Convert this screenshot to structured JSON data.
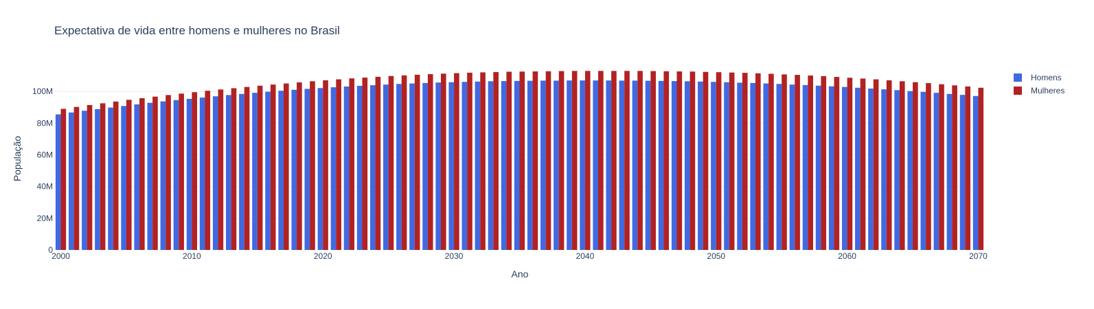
{
  "chart_data": {
    "type": "bar",
    "title": "Expectativa de vida entre homens e mulheres no Brasil",
    "xlabel": "Ano",
    "ylabel": "População",
    "xlim": [
      2000,
      2070
    ],
    "ylim": [
      0,
      110000000
    ],
    "x_ticks": [
      "2000",
      "2010",
      "2020",
      "2030",
      "2040",
      "2050",
      "2060",
      "2070"
    ],
    "x_tick_values": [
      2000,
      2010,
      2020,
      2030,
      2040,
      2050,
      2060,
      2070
    ],
    "y_ticks": [
      "0",
      "20M",
      "40M",
      "60M",
      "80M",
      "100M"
    ],
    "y_tick_values": [
      0,
      20000000,
      40000000,
      60000000,
      80000000,
      100000000
    ],
    "grid": true,
    "legend_position": "top-right",
    "x": [
      2000,
      2001,
      2002,
      2003,
      2004,
      2005,
      2006,
      2007,
      2008,
      2009,
      2010,
      2011,
      2012,
      2013,
      2014,
      2015,
      2016,
      2017,
      2018,
      2019,
      2020,
      2021,
      2022,
      2023,
      2024,
      2025,
      2026,
      2027,
      2028,
      2029,
      2030,
      2031,
      2032,
      2033,
      2034,
      2035,
      2036,
      2037,
      2038,
      2039,
      2040,
      2041,
      2042,
      2043,
      2044,
      2045,
      2046,
      2047,
      2048,
      2049,
      2050,
      2051,
      2052,
      2053,
      2054,
      2055,
      2056,
      2057,
      2058,
      2059,
      2060,
      2061,
      2062,
      2063,
      2064,
      2065,
      2066,
      2067,
      2068,
      2069,
      2070
    ],
    "series": [
      {
        "name": "Homens",
        "color": "#4169e1",
        "values": [
          85500000,
          86700000,
          87800000,
          88800000,
          89800000,
          90800000,
          91800000,
          92800000,
          93700000,
          94500000,
          95300000,
          96100000,
          96900000,
          97700000,
          98400000,
          99100000,
          99800000,
          100400000,
          101000000,
          101600000,
          102100000,
          102600000,
          103100000,
          103500000,
          103900000,
          104300000,
          104700000,
          105000000,
          105300000,
          105600000,
          105800000,
          106000000,
          106200000,
          106400000,
          106500000,
          106600000,
          106700000,
          106800000,
          106800000,
          106900000,
          106900000,
          106900000,
          106900000,
          106800000,
          106800000,
          106700000,
          106600000,
          106500000,
          106400000,
          106200000,
          106000000,
          105800000,
          105500000,
          105300000,
          105000000,
          104700000,
          104300000,
          104000000,
          103600000,
          103200000,
          102800000,
          102300000,
          101800000,
          101300000,
          100800000,
          100200000,
          99700000,
          99100000,
          98400000,
          97800000,
          97100000
        ]
      },
      {
        "name": "Mulheres",
        "color": "#b22222",
        "values": [
          89000000,
          90200000,
          91400000,
          92500000,
          93600000,
          94700000,
          95700000,
          96700000,
          97700000,
          98600000,
          99500000,
          100400000,
          101200000,
          102000000,
          102800000,
          103600000,
          104300000,
          105000000,
          105700000,
          106400000,
          107000000,
          107600000,
          108200000,
          108700000,
          109200000,
          109700000,
          110100000,
          110500000,
          110900000,
          111200000,
          111500000,
          111800000,
          112000000,
          112200000,
          112400000,
          112500000,
          112600000,
          112700000,
          112800000,
          112900000,
          112900000,
          112900000,
          112900000,
          112900000,
          112900000,
          112800000,
          112700000,
          112600000,
          112500000,
          112300000,
          112100000,
          111900000,
          111700000,
          111400000,
          111100000,
          110700000,
          110400000,
          110000000,
          109600000,
          109100000,
          108600000,
          108100000,
          107600000,
          107000000,
          106400000,
          105800000,
          105200000,
          104500000,
          103800000,
          103100000,
          102300000
        ]
      }
    ]
  }
}
